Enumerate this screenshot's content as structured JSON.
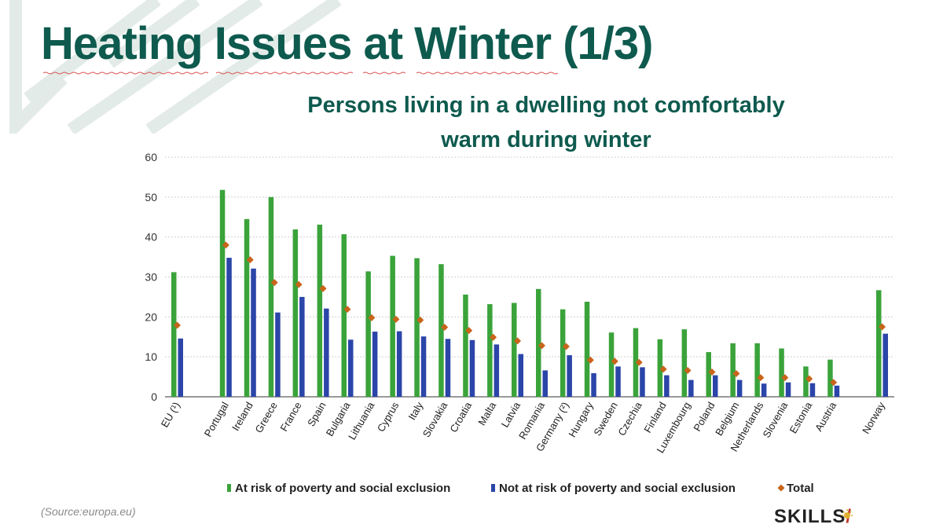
{
  "slide": {
    "title": "Heating Issues at Winter (1/3)",
    "subtitle_line1": "Persons living in a dwelling not comfortably",
    "subtitle_line2": "warm during winter",
    "source": "(Source:europa.eu)",
    "logo_text": "SKILLS",
    "logo_mark": "/"
  },
  "colors": {
    "title": "#0e5a4e",
    "at_risk": "#3aa33a",
    "not_at_risk": "#2b45a8",
    "total": "#c8651b",
    "decoration": "#e3ebe8"
  },
  "chart_data": {
    "type": "bar",
    "title": "Persons living in a dwelling not comfortably warm during winter",
    "xlabel": "",
    "ylabel": "",
    "ylim": [
      0,
      60
    ],
    "yticks": [
      0,
      10,
      20,
      30,
      40,
      50,
      60
    ],
    "grid": true,
    "legend_position": "bottom",
    "categories": [
      "EU (¹)",
      "Portugal",
      "Ireland",
      "Greece",
      "France",
      "Spain",
      "Bulgaria",
      "Lithuania",
      "Cyprus",
      "Italy",
      "Slovakia",
      "Croatia",
      "Malta",
      "Latvia",
      "Romania",
      "Germany (²)",
      "Hungary",
      "Sweden",
      "Czechia",
      "Finland",
      "Luxembourg",
      "Poland",
      "Belgium",
      "Netherlands",
      "Slovenia",
      "Estonia",
      "Austria",
      "Norway"
    ],
    "group_breaks_after": [
      0,
      26
    ],
    "series": [
      {
        "name": "At risk of poverty and social exclusion",
        "kind": "bar",
        "color": "#3aa33a",
        "values": [
          31.2,
          51.8,
          44.5,
          50.0,
          41.9,
          43.1,
          40.7,
          31.4,
          35.3,
          34.7,
          33.2,
          25.6,
          23.2,
          23.5,
          27.0,
          21.9,
          23.8,
          16.1,
          17.2,
          14.4,
          16.9,
          11.2,
          13.4,
          13.4,
          12.1,
          7.6,
          9.3,
          26.7
        ]
      },
      {
        "name": "Not at risk of poverty and social exclusion",
        "kind": "bar",
        "color": "#2b45a8",
        "values": [
          14.6,
          34.8,
          32.1,
          21.1,
          25.0,
          22.1,
          14.3,
          16.3,
          16.4,
          15.1,
          14.5,
          14.2,
          13.1,
          10.7,
          6.6,
          10.4,
          5.9,
          7.6,
          7.4,
          5.4,
          4.2,
          5.4,
          4.2,
          3.3,
          3.6,
          3.4,
          2.8,
          15.8
        ]
      },
      {
        "name": "Total",
        "kind": "marker",
        "color": "#c8651b",
        "values": [
          17.9,
          38.0,
          34.3,
          28.6,
          28.1,
          27.1,
          21.9,
          19.8,
          19.4,
          19.2,
          17.4,
          16.6,
          14.9,
          14.0,
          12.8,
          12.6,
          9.2,
          8.9,
          8.6,
          6.9,
          6.6,
          6.2,
          5.8,
          4.8,
          4.8,
          4.5,
          3.6,
          17.5
        ]
      }
    ]
  }
}
